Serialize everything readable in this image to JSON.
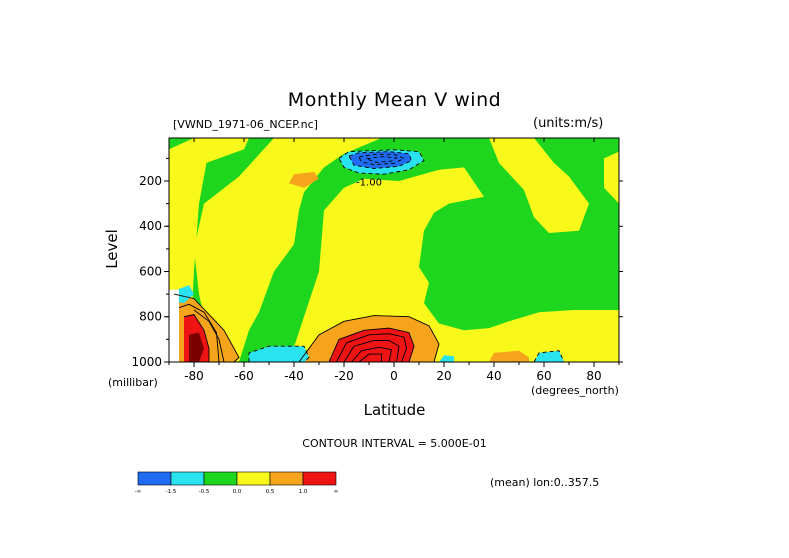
{
  "chart_data": {
    "type": "heatmap",
    "title": "Monthly Mean V wind",
    "dataset_label": "[VWND_1971-06_NCEP.nc]",
    "units_label": "(units:m/s)",
    "xlabel": "Latitude",
    "ylabel": "Level",
    "x_units_label": "(degrees_north)",
    "y_units_label": "(millibar)",
    "xlim": [
      -90,
      90
    ],
    "ylim": [
      1000,
      10
    ],
    "x_ticks": [
      "-80",
      "-60",
      "-40",
      "-20",
      "0",
      "20",
      "40",
      "60",
      "80"
    ],
    "x_tick_values": [
      -80,
      -60,
      -40,
      -20,
      0,
      20,
      40,
      60,
      80
    ],
    "y_ticks": [
      "200",
      "400",
      "600",
      "800",
      "1000"
    ],
    "y_tick_values": [
      200,
      400,
      600,
      800,
      1000
    ],
    "contour_interval_label": "CONTOUR INTERVAL = 5.000E-01",
    "footer_label": "(mean) lon:0..357.5",
    "contour_labels": [
      {
        "text": "-1.00",
        "lat": -10,
        "level": 220
      }
    ],
    "colorbar": {
      "colors": [
        "#1f6cf0",
        "#29e3ee",
        "#1dd61d",
        "#f8f81b",
        "#f5a41c",
        "#ee1414"
      ],
      "tick_labels": [
        "-∞",
        "-1.5",
        "-0.5",
        "0.0",
        "0.5",
        "1.0",
        "∞"
      ]
    },
    "regions": [
      {
        "color": "#1dd61d",
        "points": [
          [
            -90,
            10
          ],
          [
            90,
            10
          ],
          [
            90,
            1000
          ],
          [
            -90,
            1000
          ]
        ]
      },
      {
        "color": "#f8f81b",
        "points": [
          [
            -80,
            10
          ],
          [
            -58,
            10
          ],
          [
            -60,
            60
          ],
          [
            -75,
            120
          ],
          [
            -78,
            300
          ],
          [
            -80,
            600
          ],
          [
            -82,
            1000
          ],
          [
            -90,
            1000
          ],
          [
            -90,
            60
          ]
        ]
      },
      {
        "color": "#f8f81b",
        "points": [
          [
            -48,
            10
          ],
          [
            -5,
            10
          ],
          [
            -20,
            80
          ],
          [
            -28,
            140
          ],
          [
            -36,
            250
          ],
          [
            -38,
            330
          ],
          [
            -40,
            480
          ],
          [
            -48,
            600
          ],
          [
            -54,
            780
          ],
          [
            -58,
            860
          ],
          [
            -62,
            1000
          ],
          [
            -72,
            1000
          ],
          [
            -78,
            700
          ],
          [
            -80,
            500
          ],
          [
            -76,
            300
          ],
          [
            -62,
            180
          ]
        ]
      },
      {
        "color": "#f8f81b",
        "points": [
          [
            -28,
            330
          ],
          [
            -20,
            230
          ],
          [
            -12,
            190
          ],
          [
            2,
            200
          ],
          [
            18,
            150
          ],
          [
            28,
            140
          ],
          [
            36,
            270
          ],
          [
            22,
            300
          ],
          [
            16,
            340
          ],
          [
            12,
            420
          ],
          [
            10,
            580
          ],
          [
            14,
            650
          ],
          [
            12,
            740
          ],
          [
            18,
            830
          ],
          [
            28,
            860
          ],
          [
            38,
            850
          ],
          [
            46,
            820
          ],
          [
            58,
            780
          ],
          [
            72,
            770
          ],
          [
            90,
            770
          ],
          [
            90,
            1000
          ],
          [
            -42,
            1000
          ],
          [
            -36,
            800
          ],
          [
            -30,
            600
          ]
        ]
      },
      {
        "color": "#f8f81b",
        "points": [
          [
            38,
            10
          ],
          [
            56,
            10
          ],
          [
            64,
            120
          ],
          [
            70,
            180
          ],
          [
            78,
            300
          ],
          [
            74,
            420
          ],
          [
            62,
            430
          ],
          [
            56,
            360
          ],
          [
            52,
            240
          ],
          [
            42,
            120
          ]
        ]
      },
      {
        "color": "#f8f81b",
        "points": [
          [
            84,
            100
          ],
          [
            90,
            70
          ],
          [
            90,
            300
          ],
          [
            84,
            230
          ]
        ]
      },
      {
        "color": "#f8f81b",
        "points": [
          [
            -38,
            10
          ],
          [
            -34,
            10
          ],
          [
            -34,
            30
          ],
          [
            -38,
            30
          ]
        ]
      },
      {
        "color": "#f5a41c",
        "points": [
          [
            -40,
            170
          ],
          [
            -32,
            160
          ],
          [
            -30,
            190
          ],
          [
            -36,
            230
          ],
          [
            -42,
            210
          ]
        ]
      },
      {
        "color": "#f5a41c",
        "points": [
          [
            -88,
            700
          ],
          [
            -80,
            720
          ],
          [
            -68,
            860
          ],
          [
            -62,
            980
          ],
          [
            -64,
            1000
          ],
          [
            -88,
            1000
          ]
        ]
      },
      {
        "color": "#f5a41c",
        "points": [
          [
            -38,
            1000
          ],
          [
            -30,
            880
          ],
          [
            -20,
            820
          ],
          [
            -8,
            795
          ],
          [
            6,
            800
          ],
          [
            14,
            840
          ],
          [
            18,
            920
          ],
          [
            16,
            1000
          ]
        ]
      },
      {
        "color": "#f5a41c",
        "points": [
          [
            38,
            1000
          ],
          [
            40,
            960
          ],
          [
            50,
            950
          ],
          [
            54,
            980
          ],
          [
            54,
            1000
          ]
        ]
      },
      {
        "color": "#ee1414",
        "points": [
          [
            -84,
            800
          ],
          [
            -80,
            790
          ],
          [
            -76,
            860
          ],
          [
            -74,
            940
          ],
          [
            -74,
            1000
          ],
          [
            -84,
            1000
          ]
        ]
      },
      {
        "color": "#ee1414",
        "points": [
          [
            -26,
            1000
          ],
          [
            -22,
            900
          ],
          [
            -12,
            860
          ],
          [
            -2,
            850
          ],
          [
            6,
            870
          ],
          [
            8,
            930
          ],
          [
            6,
            1000
          ]
        ]
      },
      {
        "color": "#7a0000",
        "points": [
          [
            -82,
            880
          ],
          [
            -78,
            870
          ],
          [
            -76,
            940
          ],
          [
            -78,
            1000
          ],
          [
            -82,
            1000
          ]
        ]
      },
      {
        "color": "#29e3ee",
        "points": [
          [
            -22,
            100
          ],
          [
            -18,
            70
          ],
          [
            0,
            62
          ],
          [
            10,
            70
          ],
          [
            12,
            110
          ],
          [
            6,
            150
          ],
          [
            -4,
            170
          ],
          [
            -14,
            165
          ],
          [
            -20,
            140
          ]
        ]
      },
      {
        "color": "#1f6cf0",
        "points": [
          [
            -18,
            90
          ],
          [
            -14,
            75
          ],
          [
            -2,
            70
          ],
          [
            6,
            80
          ],
          [
            7,
            110
          ],
          [
            2,
            135
          ],
          [
            -8,
            145
          ],
          [
            -16,
            130
          ]
        ]
      },
      {
        "color": "#29e3ee",
        "points": [
          [
            -89,
            690
          ],
          [
            -82,
            660
          ],
          [
            -80,
            700
          ],
          [
            -84,
            740
          ],
          [
            -89,
            730
          ]
        ]
      },
      {
        "color": "#29e3ee",
        "points": [
          [
            -58,
            1000
          ],
          [
            -58,
            960
          ],
          [
            -50,
            930
          ],
          [
            -36,
            930
          ],
          [
            -34,
            980
          ],
          [
            -36,
            1000
          ]
        ]
      },
      {
        "color": "#29e3ee",
        "points": [
          [
            18,
            1000
          ],
          [
            20,
            970
          ],
          [
            24,
            975
          ],
          [
            24,
            1000
          ]
        ]
      },
      {
        "color": "#29e3ee",
        "points": [
          [
            56,
            1000
          ],
          [
            58,
            960
          ],
          [
            66,
            950
          ],
          [
            68,
            1000
          ]
        ]
      },
      {
        "color": "#ffffff",
        "points": [
          [
            -90,
            680
          ],
          [
            -86,
            680
          ],
          [
            -86,
            1000
          ],
          [
            -90,
            1000
          ]
        ]
      }
    ],
    "contours": [
      {
        "dashed": true,
        "points": [
          [
            -22,
            100
          ],
          [
            -18,
            70
          ],
          [
            0,
            62
          ],
          [
            10,
            70
          ],
          [
            12,
            110
          ],
          [
            6,
            150
          ],
          [
            -4,
            170
          ],
          [
            -14,
            165
          ],
          [
            -20,
            140
          ],
          [
            -22,
            100
          ]
        ]
      },
      {
        "dashed": true,
        "points": [
          [
            -18,
            90
          ],
          [
            -14,
            75
          ],
          [
            -2,
            70
          ],
          [
            6,
            80
          ],
          [
            7,
            110
          ],
          [
            2,
            135
          ],
          [
            -8,
            145
          ],
          [
            -16,
            130
          ],
          [
            -18,
            90
          ]
        ]
      },
      {
        "dashed": true,
        "points": [
          [
            -14,
            95
          ],
          [
            -8,
            82
          ],
          [
            0,
            82
          ],
          [
            4,
            100
          ],
          [
            0,
            122
          ],
          [
            -8,
            128
          ],
          [
            -13,
            115
          ],
          [
            -14,
            95
          ]
        ]
      },
      {
        "dashed": true,
        "points": [
          [
            -11,
            102
          ],
          [
            -5,
            92
          ],
          [
            1,
            98
          ],
          [
            -1,
            112
          ],
          [
            -7,
            118
          ],
          [
            -11,
            102
          ]
        ]
      },
      {
        "dashed": false,
        "points": [
          [
            -26,
            1000
          ],
          [
            -22,
            900
          ],
          [
            -12,
            860
          ],
          [
            -2,
            850
          ],
          [
            6,
            870
          ],
          [
            8,
            930
          ],
          [
            6,
            1000
          ]
        ]
      },
      {
        "dashed": false,
        "points": [
          [
            -23,
            1000
          ],
          [
            -19,
            915
          ],
          [
            -10,
            880
          ],
          [
            -2,
            875
          ],
          [
            4,
            890
          ],
          [
            5,
            940
          ],
          [
            3,
            1000
          ]
        ]
      },
      {
        "dashed": false,
        "points": [
          [
            -20,
            1000
          ],
          [
            -16,
            930
          ],
          [
            -8,
            905
          ],
          [
            -2,
            905
          ],
          [
            2,
            930
          ],
          [
            1,
            1000
          ]
        ]
      },
      {
        "dashed": false,
        "points": [
          [
            -17,
            1000
          ],
          [
            -13,
            950
          ],
          [
            -6,
            935
          ],
          [
            -1,
            945
          ],
          [
            -2,
            1000
          ]
        ]
      },
      {
        "dashed": false,
        "points": [
          [
            -14,
            1000
          ],
          [
            -10,
            965
          ],
          [
            -5,
            965
          ],
          [
            -5,
            1000
          ]
        ]
      },
      {
        "dashed": false,
        "points": [
          [
            -38,
            1000
          ],
          [
            -30,
            880
          ],
          [
            -20,
            820
          ],
          [
            -8,
            795
          ],
          [
            6,
            800
          ],
          [
            14,
            840
          ],
          [
            18,
            920
          ],
          [
            16,
            1000
          ]
        ]
      },
      {
        "dashed": false,
        "points": [
          [
            -88,
            700
          ],
          [
            -80,
            720
          ],
          [
            -68,
            860
          ],
          [
            -62,
            980
          ],
          [
            -64,
            1000
          ]
        ]
      },
      {
        "dashed": false,
        "points": [
          [
            -84,
            800
          ],
          [
            -80,
            790
          ],
          [
            -76,
            860
          ],
          [
            -74,
            940
          ],
          [
            -74,
            1000
          ]
        ]
      },
      {
        "dashed": false,
        "points": [
          [
            -80,
            770
          ],
          [
            -74,
            820
          ],
          [
            -70,
            900
          ],
          [
            -68,
            1000
          ]
        ]
      },
      {
        "dashed": false,
        "points": [
          [
            -86,
            760
          ],
          [
            -82,
            745
          ],
          [
            -76,
            780
          ],
          [
            -71,
            870
          ],
          [
            -70,
            1000
          ]
        ]
      },
      {
        "dashed": true,
        "points": [
          [
            56,
            1000
          ],
          [
            58,
            960
          ],
          [
            66,
            950
          ],
          [
            68,
            1000
          ]
        ]
      },
      {
        "dashed": true,
        "points": [
          [
            -58,
            1000
          ],
          [
            -58,
            960
          ],
          [
            -50,
            930
          ],
          [
            -36,
            930
          ],
          [
            -34,
            980
          ],
          [
            -36,
            1000
          ]
        ]
      }
    ]
  }
}
